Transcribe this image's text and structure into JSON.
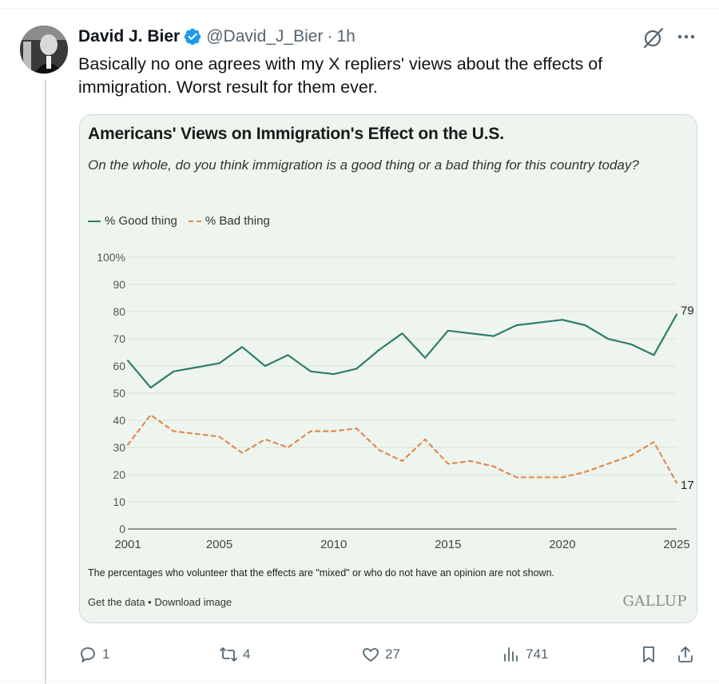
{
  "tweet": {
    "display_name": "David J. Bier",
    "handle": "@David_J_Bier",
    "separator": "·",
    "time": "1h",
    "text": "Basically no one agrees with my X repliers' views about the effects of immigration. Worst result for them ever.",
    "icons": {
      "verified": "verified-badge-icon",
      "grok": "grok-icon",
      "more": "more-icon"
    }
  },
  "card": {
    "title": "Americans' Views on Immigration's Effect on the U.S.",
    "subtitle": "On the whole, do you think immigration is a good thing or a bad thing for this country today?",
    "footnote": "The percentages who volunteer that the effects are \"mixed\" or who do not have an opinion are not shown.",
    "footer_links": "Get the data • Download image",
    "brand": "GALLUP",
    "colors": {
      "good": "#2e7d6a",
      "bad": "#e08a4f",
      "background": "#eef5ee"
    }
  },
  "chart_data": {
    "type": "line",
    "title": "Americans' Views on Immigration's Effect on the U.S.",
    "subtitle": "On the whole, do you think immigration is a good thing or a bad thing for this country today?",
    "legend_position": "top-left",
    "grid": true,
    "ylim": [
      0,
      100
    ],
    "xlim": [
      2001,
      2025
    ],
    "y_ticks": [
      "100%",
      "90",
      "80",
      "70",
      "60",
      "50",
      "40",
      "30",
      "20",
      "10",
      "0"
    ],
    "x_ticks": [
      "2001",
      "2005",
      "2010",
      "2015",
      "2020",
      "2025"
    ],
    "series": [
      {
        "name": "% Good thing",
        "style": "solid",
        "x": [
          2001,
          2002,
          2003,
          2005,
          2006,
          2007,
          2008,
          2009,
          2010,
          2011,
          2012,
          2013,
          2014,
          2015,
          2017,
          2018,
          2020,
          2021,
          2022,
          2023,
          2024,
          2025
        ],
        "values": [
          62,
          52,
          58,
          61,
          67,
          60,
          64,
          58,
          57,
          59,
          66,
          72,
          63,
          73,
          71,
          75,
          77,
          75,
          70,
          68,
          64,
          79
        ],
        "end_label": "79"
      },
      {
        "name": "% Bad thing",
        "style": "dashed",
        "x": [
          2001,
          2002,
          2003,
          2005,
          2006,
          2007,
          2008,
          2009,
          2010,
          2011,
          2012,
          2013,
          2014,
          2015,
          2016,
          2017,
          2018,
          2020,
          2021,
          2022,
          2023,
          2024,
          2025
        ],
        "values": [
          31,
          42,
          36,
          34,
          28,
          33,
          30,
          36,
          36,
          37,
          29,
          25,
          33,
          24,
          25,
          23,
          19,
          19,
          21,
          24,
          27,
          32,
          17
        ],
        "end_label": "17"
      }
    ]
  },
  "actions": {
    "reply": {
      "count": "1",
      "icon": "reply-icon"
    },
    "repost": {
      "count": "4",
      "icon": "repost-icon"
    },
    "like": {
      "count": "27",
      "icon": "heart-icon"
    },
    "views": {
      "count": "741",
      "icon": "views-icon"
    },
    "bookmark": {
      "icon": "bookmark-icon"
    },
    "share": {
      "icon": "share-icon"
    }
  }
}
